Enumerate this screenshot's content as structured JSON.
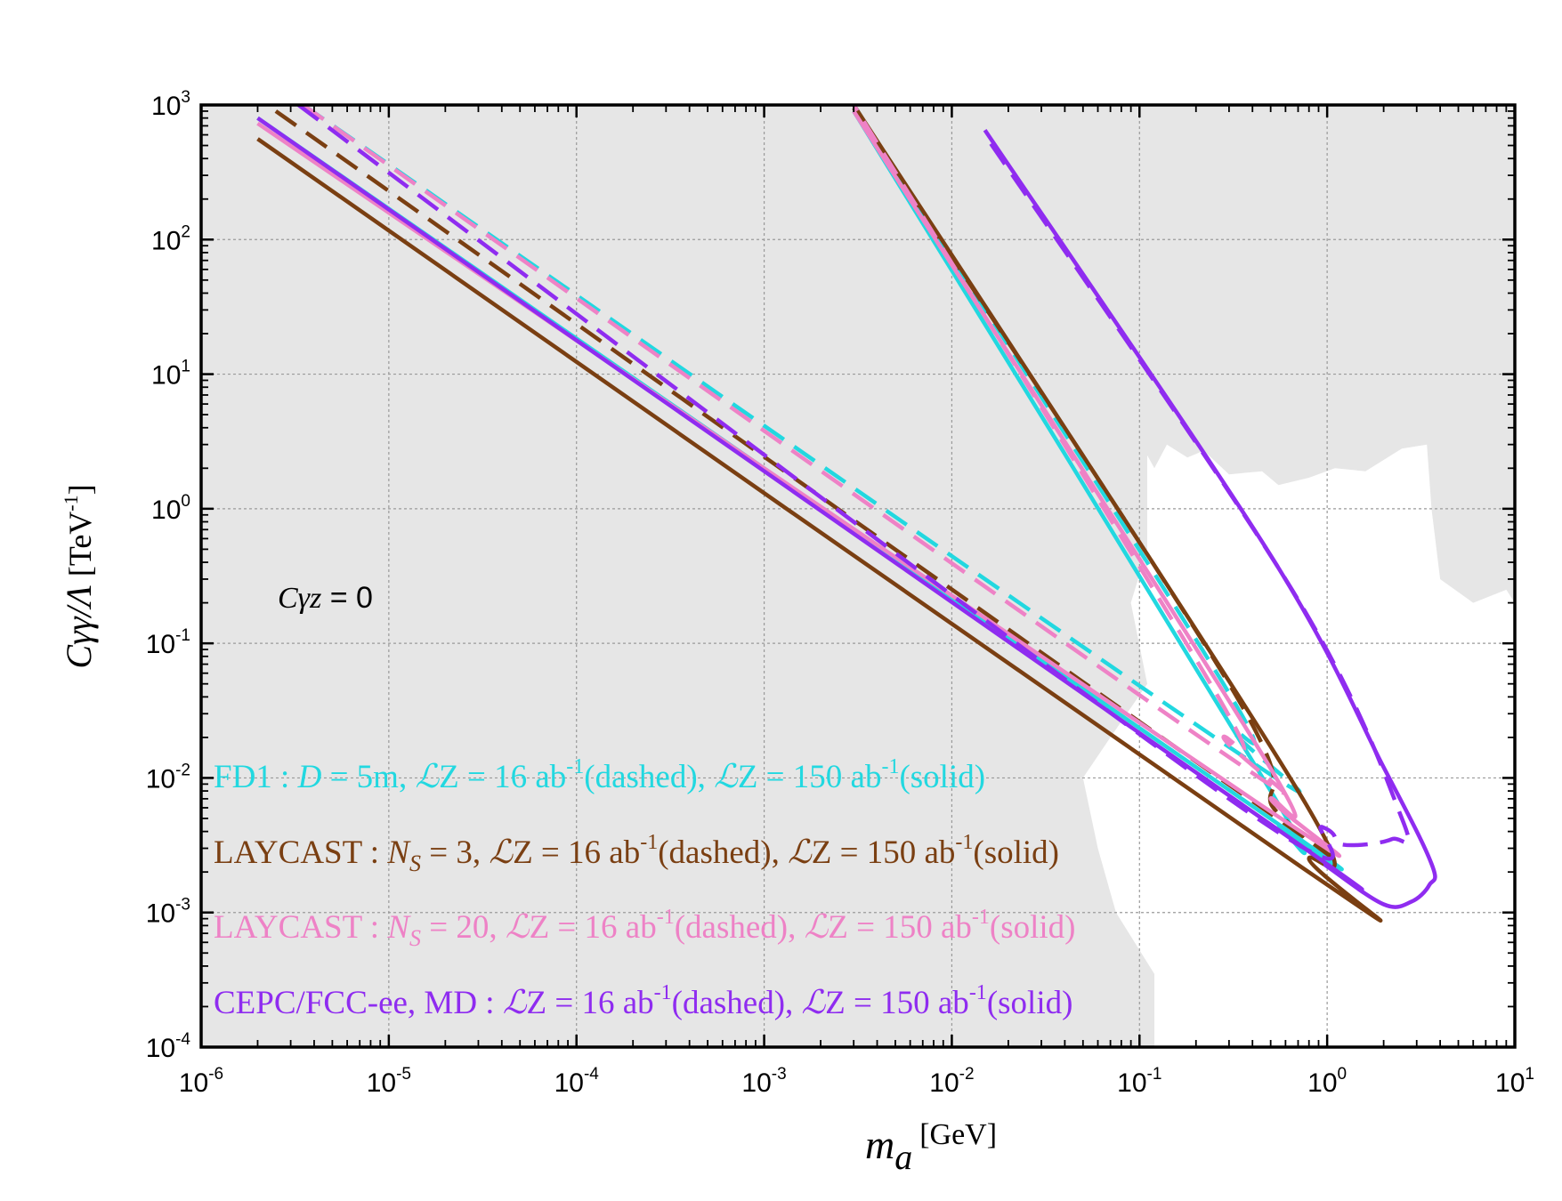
{
  "chart_data": {
    "type": "line",
    "x_scale": "log",
    "y_scale": "log",
    "xlim": [
      1e-06,
      10
    ],
    "ylim": [
      0.0001,
      1000
    ],
    "x_ticks": [
      {
        "base": "10",
        "exp": "-6"
      },
      {
        "base": "10",
        "exp": "-5"
      },
      {
        "base": "10",
        "exp": "-4"
      },
      {
        "base": "10",
        "exp": "-3"
      },
      {
        "base": "10",
        "exp": "-2"
      },
      {
        "base": "10",
        "exp": "-1"
      },
      {
        "base": "10",
        "exp": "0"
      },
      {
        "base": "10",
        "exp": "1"
      }
    ],
    "y_ticks": [
      {
        "base": "10",
        "exp": "-4"
      },
      {
        "base": "10",
        "exp": "-3"
      },
      {
        "base": "10",
        "exp": "-2"
      },
      {
        "base": "10",
        "exp": "-1"
      },
      {
        "base": "10",
        "exp": "0"
      },
      {
        "base": "10",
        "exp": "1"
      },
      {
        "base": "10",
        "exp": "2"
      },
      {
        "base": "10",
        "exp": "3"
      }
    ],
    "xlabel": {
      "main": "m",
      "sub": "a",
      "unit": "[GeV]"
    },
    "ylabel": {
      "main": "Cγγ/Λ",
      "unit_pre": "[TeV",
      "unit_sup": "-1",
      "unit_post": "]"
    },
    "grid": true,
    "annotation": {
      "italic": "Cγz",
      "rest": " = 0"
    },
    "excluded_region": {
      "color": "#e6e6e6",
      "allowed_window": [
        [
          0.11,
          2.5
        ],
        [
          0.12,
          2.0
        ],
        [
          0.14,
          3.0
        ],
        [
          0.18,
          2.4
        ],
        [
          0.22,
          2.7
        ],
        [
          0.3,
          1.8
        ],
        [
          0.45,
          1.9
        ],
        [
          0.55,
          1.5
        ],
        [
          0.8,
          1.7
        ],
        [
          1.1,
          2.0
        ],
        [
          1.6,
          1.9
        ],
        [
          2.5,
          2.8
        ],
        [
          3.4,
          3.0
        ],
        [
          3.6,
          1.0
        ],
        [
          4.0,
          0.3
        ],
        [
          6.0,
          0.2
        ],
        [
          9.0,
          0.25
        ],
        [
          10,
          0.2
        ],
        [
          10,
          0.0001
        ],
        [
          0.12,
          0.0001
        ],
        [
          0.12,
          0.00035
        ],
        [
          0.075,
          0.001
        ],
        [
          0.06,
          0.003
        ],
        [
          0.05,
          0.01
        ],
        [
          0.07,
          0.02
        ],
        [
          0.11,
          0.05
        ],
        [
          0.09,
          0.2
        ],
        [
          0.11,
          0.5
        ]
      ]
    },
    "series": [
      {
        "name": "FD1 16 ab-1",
        "color": "#22d8e0",
        "style": "dashed",
        "points": [
          [
            3.5e-06,
            1000
          ],
          [
            0.3,
            0.017
          ],
          [
            0.32,
            0.022
          ],
          [
            0.28,
            0.05
          ],
          [
            0.003,
            1000
          ]
        ]
      },
      {
        "name": "FD1 150 ab-1",
        "color": "#22d8e0",
        "style": "solid",
        "points": [
          [
            2e-06,
            800
          ],
          [
            0.45,
            0.0055
          ],
          [
            0.55,
            0.0045
          ],
          [
            0.5,
            0.008
          ],
          [
            0.003,
            900
          ]
        ]
      },
      {
        "name": "LAYCAST NS=3 16 ab-1",
        "color": "#7a3f12",
        "style": "dashed",
        "points": [
          [
            2.5e-06,
            900
          ],
          [
            0.45,
            0.006
          ],
          [
            0.5,
            0.0065
          ],
          [
            0.3,
            0.05
          ],
          [
            0.003,
            950
          ]
        ]
      },
      {
        "name": "LAYCAST NS=3 150 ab-1",
        "color": "#7a3f12",
        "style": "solid",
        "points": [
          [
            2e-06,
            560
          ],
          [
            0.72,
            0.0022
          ],
          [
            0.8,
            0.0025
          ],
          [
            0.7,
            0.008
          ],
          [
            0.003,
            1000
          ]
        ]
      },
      {
        "name": "LAYCAST NS=20 16 ab-1",
        "color": "#ee82c6",
        "style": "dashed",
        "points": [
          [
            3.5e-06,
            1000
          ],
          [
            0.25,
            0.017
          ],
          [
            0.28,
            0.02
          ],
          [
            0.25,
            0.045
          ],
          [
            0.003,
            1000
          ]
        ]
      },
      {
        "name": "LAYCAST NS=20 150 ab-1",
        "color": "#ee82c6",
        "style": "solid",
        "points": [
          [
            2e-06,
            730
          ],
          [
            0.45,
            0.0062
          ],
          [
            0.5,
            0.007
          ],
          [
            0.45,
            0.015
          ],
          [
            0.003,
            900
          ]
        ]
      },
      {
        "name": "CEPC/FCC-ee MD 16 ab-1",
        "color": "#8f2cf0",
        "style": "dashed",
        "points": [
          [
            3.3e-06,
            1000
          ],
          [
            0.3,
            0.007
          ],
          [
            0.95,
            0.0043
          ],
          [
            1.2,
            0.0032
          ],
          [
            2.2,
            0.0035
          ],
          [
            2.5,
            0.005
          ],
          [
            0.65,
            0.25
          ],
          [
            0.015,
            600
          ]
        ]
      },
      {
        "name": "CEPC/FCC-ee MD 150 ab-1",
        "color": "#8f2cf0",
        "style": "solid",
        "points": [
          [
            2e-06,
            800
          ],
          [
            0.5,
            0.0045
          ],
          [
            1.0,
            0.0022
          ],
          [
            2.0,
            0.00115
          ],
          [
            2.8,
            0.0012
          ],
          [
            3.5,
            0.0016
          ],
          [
            3.6,
            0.0023
          ],
          [
            2.0,
            0.012
          ],
          [
            0.5,
            0.45
          ],
          [
            0.015,
            650
          ]
        ]
      }
    ],
    "legend": [
      {
        "color": "#22d8e0",
        "parts": [
          {
            "t": "FD1 : "
          },
          {
            "t": "D",
            "i": true
          },
          {
            "t": " = 5m, "
          },
          {
            "t": "ℒ",
            "i": true
          },
          {
            "t": "Z = 16 ab"
          },
          {
            "t": "-1",
            "sup": true
          },
          {
            "t": "(dashed), "
          },
          {
            "t": "ℒ",
            "i": true
          },
          {
            "t": "Z = 150 ab"
          },
          {
            "t": "-1",
            "sup": true
          },
          {
            "t": "(solid)"
          }
        ]
      },
      {
        "color": "#7a3f12",
        "parts": [
          {
            "t": "LAYCAST : "
          },
          {
            "t": "N",
            "i": true
          },
          {
            "t": "S",
            "i": true,
            "sub": true
          },
          {
            "t": " = 3,  "
          },
          {
            "t": "ℒ",
            "i": true
          },
          {
            "t": "Z = 16 ab"
          },
          {
            "t": "-1",
            "sup": true
          },
          {
            "t": "(dashed), "
          },
          {
            "t": "ℒ",
            "i": true
          },
          {
            "t": "Z = 150 ab"
          },
          {
            "t": "-1",
            "sup": true
          },
          {
            "t": "(solid)"
          }
        ]
      },
      {
        "color": "#ee82c6",
        "parts": [
          {
            "t": "LAYCAST : "
          },
          {
            "t": "N",
            "i": true
          },
          {
            "t": "S",
            "i": true,
            "sub": true
          },
          {
            "t": " = 20,  "
          },
          {
            "t": "ℒ",
            "i": true
          },
          {
            "t": "Z = 16 ab"
          },
          {
            "t": "-1",
            "sup": true
          },
          {
            "t": "(dashed), "
          },
          {
            "t": "ℒ",
            "i": true
          },
          {
            "t": "Z = 150 ab"
          },
          {
            "t": "-1",
            "sup": true
          },
          {
            "t": "(solid)"
          }
        ]
      },
      {
        "color": "#8f2cf0",
        "parts": [
          {
            "t": "CEPC/FCC-ee, MD : "
          },
          {
            "t": "ℒ",
            "i": true
          },
          {
            "t": "Z = 16 ab"
          },
          {
            "t": "-1",
            "sup": true
          },
          {
            "t": "(dashed),  "
          },
          {
            "t": "ℒ",
            "i": true
          },
          {
            "t": "Z = 150 ab"
          },
          {
            "t": "-1",
            "sup": true
          },
          {
            "t": "(solid)"
          }
        ]
      }
    ]
  }
}
